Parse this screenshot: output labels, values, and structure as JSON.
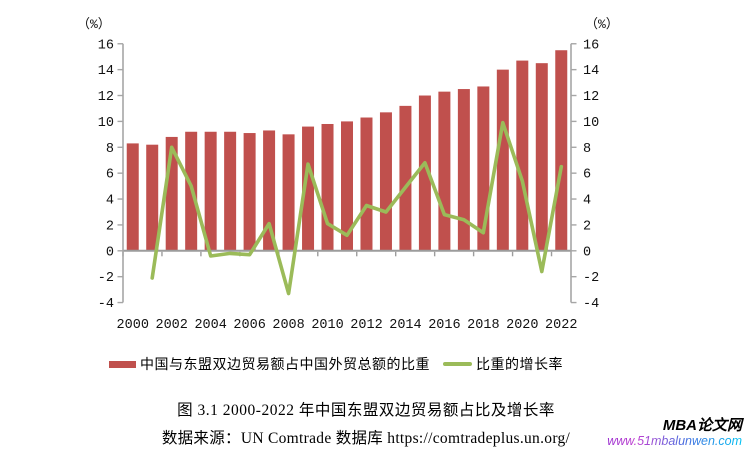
{
  "chart_data": {
    "type": "bar+line combo",
    "title": "",
    "categories": [
      2000,
      2001,
      2002,
      2003,
      2004,
      2005,
      2006,
      2007,
      2008,
      2009,
      2010,
      2011,
      2012,
      2013,
      2014,
      2015,
      2016,
      2017,
      2018,
      2019,
      2020,
      2021,
      2022
    ],
    "series": [
      {
        "name": "中国与东盟双边贸易额占中国外贸总额的比重",
        "type": "bar",
        "color": "#C0504D",
        "values": [
          8.3,
          8.2,
          8.8,
          9.2,
          9.2,
          9.2,
          9.1,
          9.3,
          9.0,
          9.6,
          9.8,
          10.0,
          10.3,
          10.7,
          11.2,
          12.0,
          12.3,
          12.5,
          12.7,
          14.0,
          14.7,
          14.5,
          15.5
        ]
      },
      {
        "name": "比重的增长率",
        "type": "line",
        "color": "#9BBB59",
        "values": [
          null,
          -2.1,
          8.0,
          5.0,
          -0.4,
          -0.2,
          -0.3,
          2.1,
          -3.3,
          6.7,
          2.1,
          1.2,
          3.5,
          3.0,
          4.9,
          6.8,
          2.8,
          2.4,
          1.4,
          9.9,
          5.4,
          -1.6,
          6.5
        ]
      }
    ],
    "y_axis_left": {
      "min": -4,
      "max": 16,
      "step": 2,
      "unit_label": "（%）"
    },
    "y_axis_right": {
      "min": -4,
      "max": 16,
      "step": 2,
      "unit_label": "（%）"
    },
    "x_tick_label_interval": 2,
    "x_tick_labels": [
      "2000",
      "2002",
      "2004",
      "2006",
      "2008",
      "2010",
      "2012",
      "2014",
      "2016",
      "2018",
      "2020",
      "2022"
    ],
    "grid": false,
    "legend_position": "bottom"
  },
  "legend": {
    "bar_label": "中国与东盟双边贸易额占中国外贸总额的比重",
    "line_label": "比重的增长率"
  },
  "caption": {
    "text": "图 3.1  2000-2022 年中国东盟双边贸易额占比及增长率"
  },
  "source": {
    "text": "数据来源：UN Comtrade 数据库 https://comtradeplus.un.org/"
  },
  "watermark": {
    "title": "MBA论文网",
    "url": "www.51mbalunwen.com"
  },
  "colors": {
    "bar": "#C0504D",
    "line": "#9BBB59",
    "axis": "#A6A6A6",
    "x_axis": "#9C9C9C"
  }
}
